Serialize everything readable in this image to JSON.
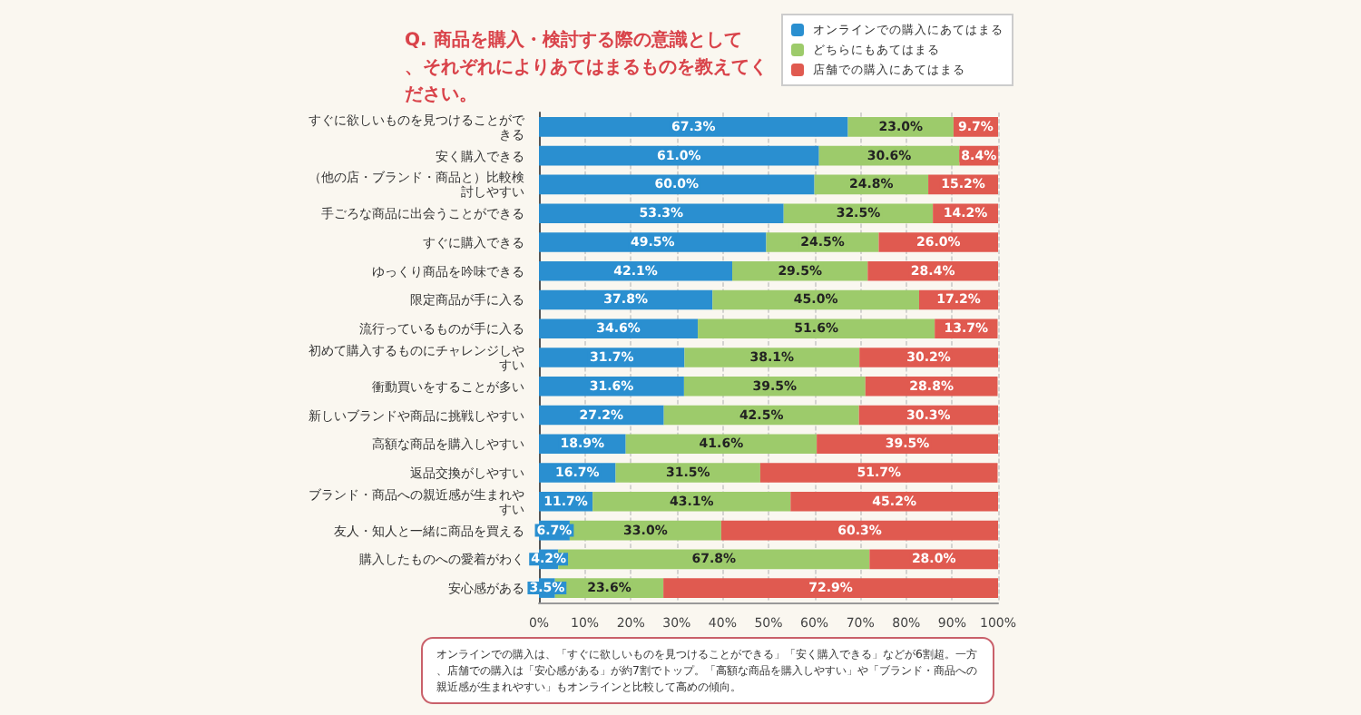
{
  "chart_data": {
    "type": "bar",
    "orientation": "horizontal",
    "stacked": true,
    "title": "Q. 商品を購入・検討する際の意識として、それぞれによりあてはまるものを教えてください。",
    "categories": [
      "すぐに欲しいものを見つけることができる",
      "安く購入できる",
      "（他の店・ブランド・商品と）比較検討しやすい",
      "手ごろな商品に出会うことができる",
      "すぐに購入できる",
      "ゆっくり商品を吟味できる",
      "限定商品が手に入る",
      "流行っているものが手に入る",
      "初めて購入するものにチャレンジしやすい",
      "衝動買いをすることが多い",
      "新しいブランドや商品に挑戦しやすい",
      "高額な商品を購入しやすい",
      "返品交換がしやすい",
      "ブランド・商品への親近感が生まれやすい",
      "友人・知人と一緒に商品を買える",
      "購入したものへの愛着がわく",
      "安心感がある"
    ],
    "series": [
      {
        "name": "オンラインでの購入にあてはまる",
        "color": "#2a8fd0",
        "values": [
          67.3,
          61.0,
          60.0,
          53.3,
          49.5,
          42.1,
          37.8,
          34.6,
          31.7,
          31.6,
          27.2,
          18.9,
          16.7,
          11.7,
          6.7,
          4.2,
          3.5
        ],
        "value_labels": [
          "67.3%",
          "61.0%",
          "60.0%",
          "53.3%",
          "49.5%",
          "42.1%",
          "37.8%",
          "34.6%",
          "31.7%",
          "31.6%",
          "27.2%",
          "18.9%",
          "16.7%",
          "11.7%",
          "6.7%",
          "4.2%",
          "3.5%"
        ]
      },
      {
        "name": "どちらにもあてはまる",
        "color": "#9dcb6b",
        "values": [
          23.0,
          30.6,
          24.8,
          32.5,
          24.5,
          29.5,
          45.0,
          51.6,
          38.1,
          39.5,
          42.5,
          41.6,
          31.5,
          43.1,
          33.0,
          67.8,
          23.6
        ],
        "value_labels": [
          "23.0%",
          "30.6%",
          "24.8%",
          "32.5%",
          "24.5%",
          "29.5%",
          "45.0%",
          "51.6%",
          "38.1%",
          "39.5%",
          "42.5%",
          "41.6%",
          "31.5%",
          "43.1%",
          "33.0%",
          "67.8%",
          "23.6%"
        ]
      },
      {
        "name": "店舗での購入にあてはまる",
        "color": "#e05a50",
        "values": [
          9.7,
          8.4,
          15.2,
          14.2,
          26.0,
          28.4,
          17.2,
          13.7,
          30.2,
          28.8,
          30.3,
          39.5,
          51.7,
          45.2,
          60.3,
          28.0,
          72.9
        ],
        "value_labels": [
          "9.7%",
          "8.4%",
          "15.2%",
          "14.2%",
          "26.0%",
          "28.4%",
          "17.2%",
          "13.7%",
          "30.2%",
          "28.8%",
          "30.3%",
          "39.5%",
          "51.7%",
          "45.2%",
          "60.3%",
          "28.0%",
          "72.9%"
        ]
      }
    ],
    "xlim": [
      0,
      100
    ],
    "xticks": [
      {
        "value": 0,
        "label": "0%"
      },
      {
        "value": 10,
        "label": "10%"
      },
      {
        "value": 20,
        "label": "20%"
      },
      {
        "value": 30,
        "label": "30%"
      },
      {
        "value": 40,
        "label": "40%"
      },
      {
        "value": 50,
        "label": "50%"
      },
      {
        "value": 60,
        "label": "60%"
      },
      {
        "value": 70,
        "label": "70%"
      },
      {
        "value": 80,
        "label": "80%"
      },
      {
        "value": 90,
        "label": "90%"
      },
      {
        "value": 100,
        "label": "100%"
      }
    ],
    "grid": "x",
    "legend": "top right",
    "annotations": [
      "オンラインでの購入は、「すぐに欲しいものを見つけることができる」「安く購入できる」などが6割超。一方、店舗での購入は「安心感がある」が約7割でトップ。「高額な商品を購入しやすい」や「ブランド・商品への親近感が生まれやすい」もオンラインと比較して高めの傾向。"
    ]
  }
}
